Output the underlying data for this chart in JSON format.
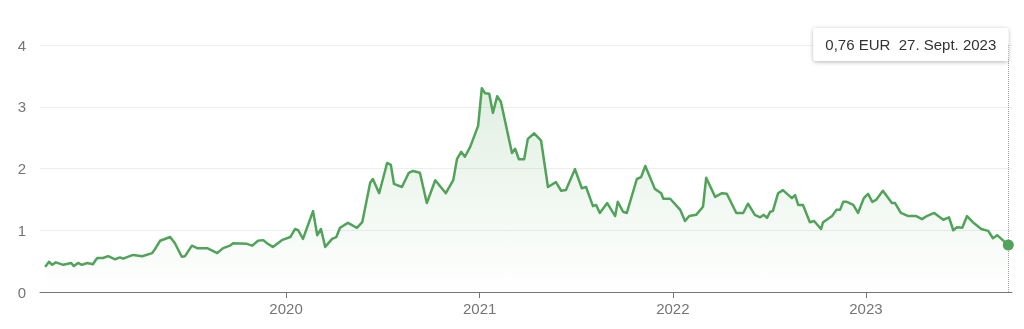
{
  "chart_data": {
    "type": "area",
    "color": "#52a35a",
    "x": [
      "2018-10-04",
      "2018-10-10",
      "2018-10-16",
      "2018-10-23",
      "2018-11-06",
      "2018-11-21",
      "2018-11-26",
      "2018-12-04",
      "2018-12-11",
      "2018-12-21",
      "2019-01-01",
      "2019-01-09",
      "2019-01-20",
      "2019-01-30",
      "2019-02-12",
      "2019-02-21",
      "2019-02-27",
      "2019-03-18",
      "2019-04-04",
      "2019-04-23",
      "2019-04-28",
      "2019-05-08",
      "2019-05-27",
      "2019-06-05",
      "2019-06-18",
      "2019-06-24",
      "2019-07-07",
      "2019-07-17",
      "2019-08-05",
      "2019-08-24",
      "2019-09-04",
      "2019-09-17",
      "2019-09-23",
      "2019-10-19",
      "2019-10-29",
      "2019-11-09",
      "2019-11-19",
      "2019-11-26",
      "2019-12-07",
      "2019-12-24",
      "2020-01-09",
      "2020-01-18",
      "2020-01-24",
      "2020-02-02",
      "2020-02-21",
      "2020-02-29",
      "2020-03-07",
      "2020-03-15",
      "2020-03-28",
      "2020-04-05",
      "2020-04-12",
      "2020-04-27",
      "2020-05-14",
      "2020-05-24",
      "2020-06-08",
      "2020-06-13",
      "2020-06-25",
      "2020-07-10",
      "2020-07-17",
      "2020-07-23",
      "2020-08-07",
      "2020-08-20",
      "2020-08-28",
      "2020-09-10",
      "2020-09-23",
      "2020-10-09",
      "2020-10-29",
      "2020-11-12",
      "2020-11-19",
      "2020-11-27",
      "2020-12-04",
      "2020-12-14",
      "2020-12-29",
      "2021-01-05",
      "2021-01-11",
      "2021-01-19",
      "2021-01-26",
      "2021-02-03",
      "2021-02-10",
      "2021-03-03",
      "2021-03-09",
      "2021-03-16",
      "2021-03-26",
      "2021-04-02",
      "2021-04-14",
      "2021-04-27",
      "2021-05-10",
      "2021-05-25",
      "2021-06-04",
      "2021-06-13",
      "2021-06-30",
      "2021-07-13",
      "2021-07-21",
      "2021-08-03",
      "2021-08-09",
      "2021-08-16",
      "2021-08-30",
      "2021-09-14",
      "2021-09-19",
      "2021-09-29",
      "2021-10-06",
      "2021-10-25",
      "2021-11-02",
      "2021-11-10",
      "2021-11-28",
      "2021-12-10",
      "2021-12-14",
      "2021-12-27",
      "2022-01-15",
      "2022-01-24",
      "2022-02-01",
      "2022-02-14",
      "2022-02-27",
      "2022-03-05",
      "2022-03-22",
      "2022-04-04",
      "2022-04-13",
      "2022-05-01",
      "2022-05-14",
      "2022-05-23",
      "2022-06-05",
      "2022-06-15",
      "2022-06-22",
      "2022-06-28",
      "2022-07-04",
      "2022-07-09",
      "2022-07-19",
      "2022-07-28",
      "2022-08-14",
      "2022-08-20",
      "2022-08-26",
      "2022-09-04",
      "2022-09-17",
      "2022-09-25",
      "2022-10-08",
      "2022-10-12",
      "2022-10-29",
      "2022-11-06",
      "2022-11-13",
      "2022-11-19",
      "2022-11-26",
      "2022-12-08",
      "2022-12-17",
      "2022-12-28",
      "2023-01-05",
      "2023-01-13",
      "2023-01-20",
      "2023-02-02",
      "2023-02-19",
      "2023-02-25",
      "2023-03-08",
      "2023-03-22",
      "2023-04-06",
      "2023-04-17",
      "2023-04-26",
      "2023-05-10",
      "2023-05-27",
      "2023-06-07",
      "2023-06-15",
      "2023-06-22",
      "2023-07-02",
      "2023-07-11",
      "2023-07-22",
      "2023-08-07",
      "2023-08-20",
      "2023-08-29",
      "2023-09-06",
      "2023-09-27"
    ],
    "values": [
      0.42,
      0.49,
      0.44,
      0.48,
      0.44,
      0.47,
      0.42,
      0.47,
      0.44,
      0.47,
      0.45,
      0.55,
      0.55,
      0.58,
      0.53,
      0.56,
      0.54,
      0.6,
      0.58,
      0.63,
      0.69,
      0.83,
      0.89,
      0.79,
      0.57,
      0.58,
      0.75,
      0.71,
      0.71,
      0.63,
      0.71,
      0.75,
      0.79,
      0.78,
      0.75,
      0.83,
      0.84,
      0.79,
      0.73,
      0.84,
      0.89,
      1.02,
      1.0,
      0.86,
      1.31,
      0.92,
      1.02,
      0.73,
      0.86,
      0.89,
      1.04,
      1.12,
      1.04,
      1.13,
      1.77,
      1.83,
      1.6,
      2.09,
      2.06,
      1.75,
      1.7,
      1.93,
      1.96,
      1.93,
      1.44,
      1.81,
      1.6,
      1.81,
      2.15,
      2.27,
      2.19,
      2.35,
      2.69,
      3.3,
      3.22,
      3.21,
      2.9,
      3.17,
      3.08,
      2.25,
      2.32,
      2.15,
      2.15,
      2.48,
      2.57,
      2.45,
      1.7,
      1.78,
      1.64,
      1.65,
      1.99,
      1.68,
      1.7,
      1.39,
      1.41,
      1.28,
      1.44,
      1.23,
      1.46,
      1.3,
      1.28,
      1.83,
      1.86,
      2.04,
      1.67,
      1.6,
      1.51,
      1.51,
      1.33,
      1.15,
      1.23,
      1.25,
      1.38,
      1.85,
      1.54,
      1.6,
      1.59,
      1.28,
      1.28,
      1.43,
      1.25,
      1.21,
      1.25,
      1.2,
      1.3,
      1.31,
      1.6,
      1.65,
      1.52,
      1.57,
      1.41,
      1.41,
      1.13,
      1.15,
      1.02,
      1.13,
      1.23,
      1.33,
      1.33,
      1.46,
      1.46,
      1.41,
      1.28,
      1.52,
      1.59,
      1.46,
      1.49,
      1.64,
      1.44,
      1.44,
      1.28,
      1.23,
      1.23,
      1.18,
      1.23,
      1.28,
      1.17,
      1.21,
      1.0,
      1.05,
      1.04,
      1.23,
      1.13,
      1.02,
      0.99,
      0.87,
      0.92,
      0.76
    ],
    "xlim": [
      "2018-09-23",
      "2023-10-04"
    ],
    "xticks": [
      "2020",
      "2021",
      "2022",
      "2023"
    ],
    "ylim": [
      0,
      4
    ],
    "yticks": [
      0,
      1,
      2,
      3,
      4
    ],
    "grid": "y",
    "ref_lines": [
      {
        "axis": "x",
        "value": "2023-09-27",
        "color": "#9e9e9e",
        "line_style": "dotted"
      }
    ],
    "annotations": [
      "0,76 EUR  27. Sept. 2023"
    ]
  }
}
